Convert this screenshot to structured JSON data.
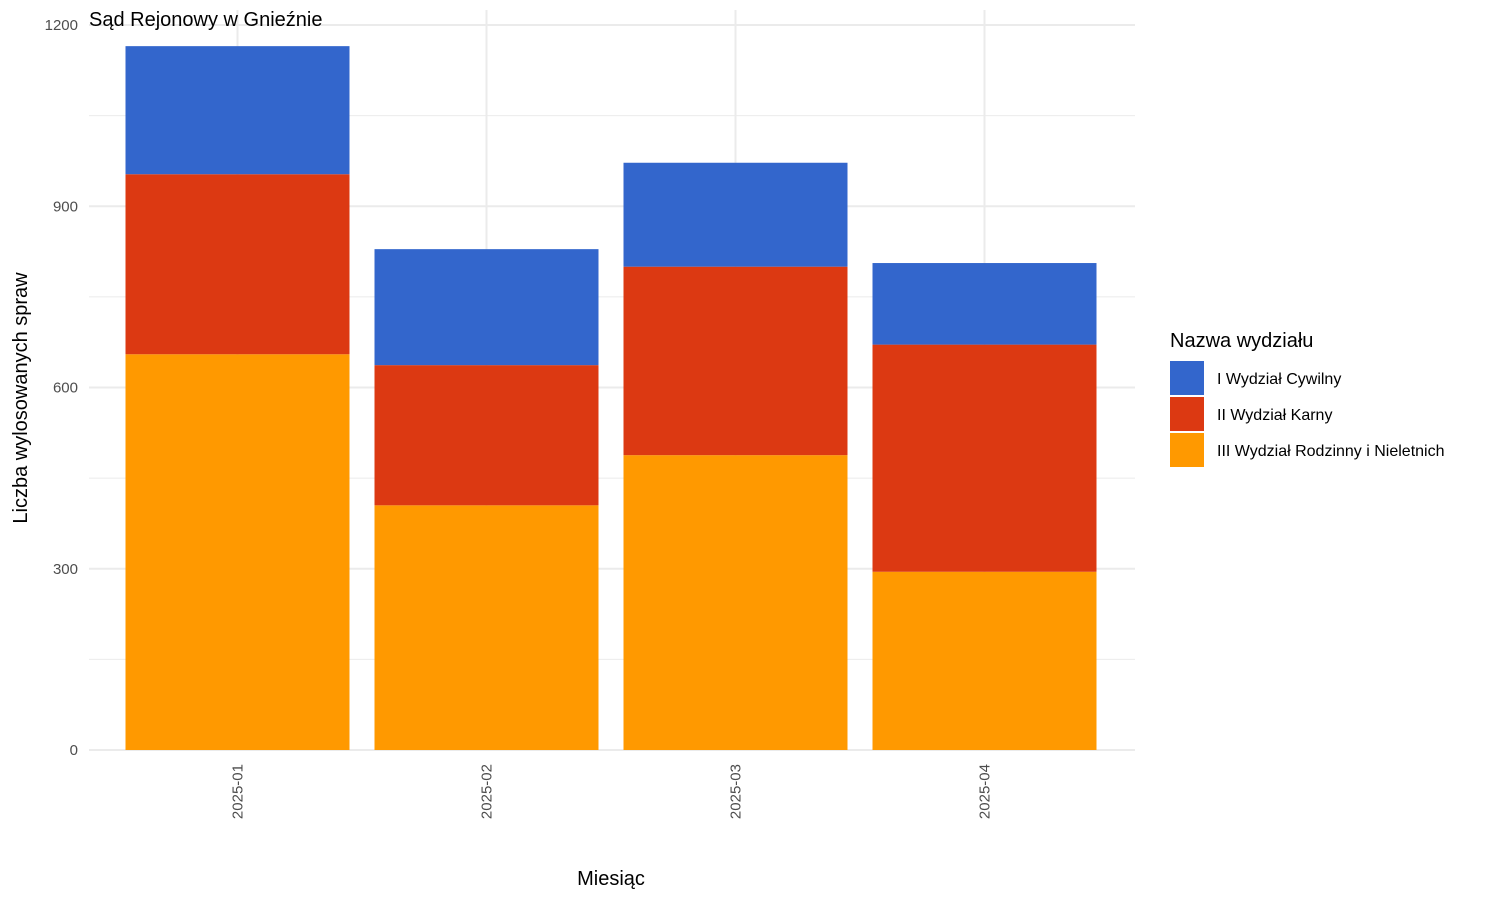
{
  "chart_data": {
    "type": "bar",
    "stacked": true,
    "title": "Sąd Rejonowy w Gnieźnie",
    "xlabel": "Miesiąc",
    "ylabel": "Liczba wylosowanych spraw",
    "categories": [
      "2025-01",
      "2025-02",
      "2025-03",
      "2025-04"
    ],
    "ylim": [
      0,
      1200
    ],
    "yticks": [
      0,
      300,
      600,
      900,
      1200
    ],
    "grid": true,
    "legend": {
      "title": "Nazwa wydziału",
      "placement": "right"
    },
    "series": [
      {
        "name": "III Wydział Rodzinny i Nieletnich",
        "color": "#FF9900",
        "values": [
          655,
          405,
          488,
          295
        ]
      },
      {
        "name": "II Wydział Karny",
        "color": "#DC3912",
        "values": [
          298,
          232,
          312,
          376
        ]
      },
      {
        "name": "I Wydział Cywilny",
        "color": "#3366CC",
        "values": [
          212,
          192,
          172,
          135
        ]
      }
    ],
    "legend_order": [
      2,
      1,
      0
    ]
  }
}
